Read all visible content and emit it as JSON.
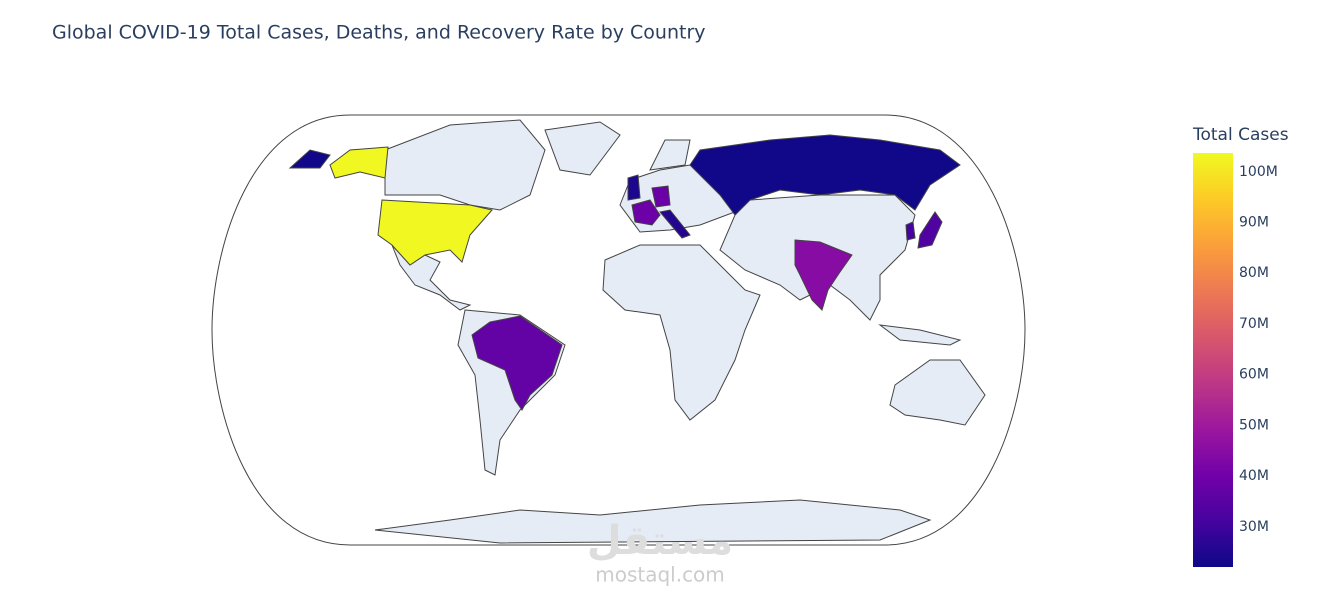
{
  "chart_data": {
    "type": "choropleth",
    "title": "Global COVID-19 Total Cases, Deaths, and Recovery Rate by Country",
    "colorbar_title": "Total Cases",
    "values": [
      103400000,
      44700000,
      38900000,
      38400000,
      37100000,
      33300000,
      31000000,
      25600000,
      24600000,
      22800000
    ],
    "zlim": [
      22100000,
      103700000
    ],
    "zticks": [
      {
        "value": 30000000,
        "label": "30M"
      },
      {
        "value": 40000000,
        "label": "40M"
      },
      {
        "value": 50000000,
        "label": "50M"
      },
      {
        "value": 60000000,
        "label": "60M"
      },
      {
        "value": 70000000,
        "label": "70M"
      },
      {
        "value": 80000000,
        "label": "80M"
      },
      {
        "value": 90000000,
        "label": "90M"
      },
      {
        "value": 100000000,
        "label": "100M"
      }
    ],
    "colorscale": [
      "#0d0887",
      "#46039f",
      "#7201a8",
      "#9c179e",
      "#bd3786",
      "#d8576b",
      "#ed7953",
      "#fb9f3a",
      "#fdca26",
      "#f0f921"
    ],
    "land_color": "#e5ecf6",
    "watermark": {
      "logo": "مستقل",
      "text": "mostaql.com"
    }
  }
}
